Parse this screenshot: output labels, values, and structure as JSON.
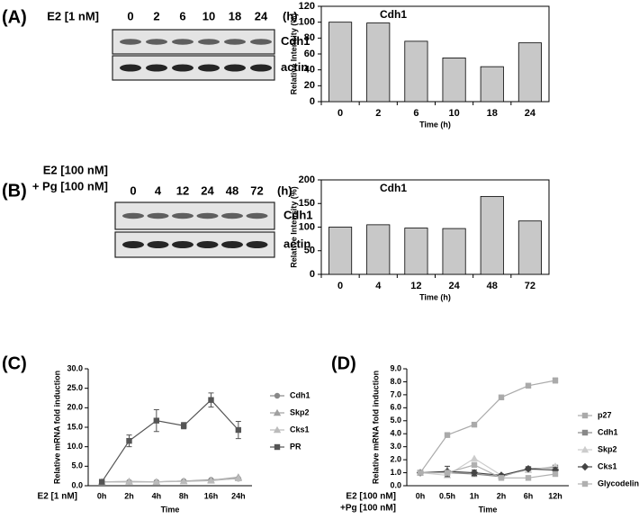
{
  "panels": [
    {
      "label": "(A)",
      "treatment": [
        "E2 [1 nM]"
      ],
      "lanes": [
        "0",
        "2",
        "6",
        "10",
        "18",
        "24"
      ],
      "unit": "(h)",
      "bands": [
        "Cdh1",
        "actin"
      ]
    },
    {
      "label": "(B)",
      "treatment": [
        "E2 [100 nM]",
        "+ Pg [100 nM]"
      ],
      "lanes": [
        "0",
        "4",
        "12",
        "24",
        "48",
        "72"
      ],
      "unit": "(h)",
      "bands": [
        "Cdh1",
        "actin"
      ]
    },
    {
      "label": "(C)"
    },
    {
      "label": "(D)"
    }
  ],
  "chart_data": [
    {
      "type": "bar",
      "title": "Cdh1",
      "y_label": "Relative Intensity (%)",
      "x_label": "Time (h)",
      "categories": [
        "0",
        "2",
        "6",
        "10",
        "18",
        "24"
      ],
      "values": [
        100,
        99,
        76,
        55,
        44,
        74
      ],
      "color": "#c8c8c8",
      "ylim": [
        0,
        120
      ],
      "yticks": [
        0,
        20,
        40,
        60,
        80,
        100,
        120
      ]
    },
    {
      "type": "bar",
      "title": "Cdh1",
      "y_label": "Relative Intensity (%)",
      "x_label": "Time (h)",
      "categories": [
        "0",
        "4",
        "12",
        "24",
        "48",
        "72"
      ],
      "values": [
        100,
        105,
        98,
        97,
        165,
        113
      ],
      "color": "#c8c8c8",
      "ylim": [
        0,
        200
      ],
      "yticks": [
        0,
        50,
        100,
        150,
        200
      ]
    },
    {
      "type": "line",
      "y_label": "Relative mRNA fold induction",
      "x_label": "Time",
      "treatment": [
        "E2 [1 nM]"
      ],
      "categories": [
        "0h",
        "2h",
        "4h",
        "8h",
        "16h",
        "24h"
      ],
      "ylim": [
        0,
        30
      ],
      "yticks": [
        {
          "value": 0,
          "label": "0.0"
        },
        {
          "value": 5,
          "label": "5.0"
        },
        {
          "value": 10,
          "label": "10.0"
        },
        {
          "value": 15,
          "label": "15.0"
        },
        {
          "value": 20,
          "label": "20.0"
        },
        {
          "value": 25,
          "label": "25.0"
        },
        {
          "value": 30,
          "label": "30.0"
        }
      ],
      "series": [
        {
          "name": "Cdh1",
          "color": "#888888",
          "marker": "circle",
          "values": [
            1,
            1,
            1,
            1.2,
            1.5,
            1.8
          ]
        },
        {
          "name": "Skp2",
          "color": "#a0a0a0",
          "marker": "triangle",
          "values": [
            1,
            1.1,
            1,
            1.2,
            1.4,
            2.2
          ]
        },
        {
          "name": "Cks1",
          "color": "#bbbbbb",
          "marker": "triangle",
          "values": [
            1,
            1,
            1,
            1.1,
            1.3,
            1.9
          ]
        },
        {
          "name": "PR",
          "color": "#555555",
          "marker": "square",
          "values": [
            1,
            11.5,
            16.7,
            15.4,
            22,
            14.3
          ],
          "errors": [
            0.3,
            1.5,
            2.8,
            0.8,
            1.8,
            2.2
          ]
        }
      ]
    },
    {
      "type": "line",
      "y_label": "Relative mRNA fold induction",
      "x_label": "Time",
      "treatment": [
        "E2 [100 nM]",
        "+Pg [100 nM]"
      ],
      "categories": [
        "0h",
        "0.5h",
        "1h",
        "2h",
        "6h",
        "12h"
      ],
      "ylim": [
        0,
        9
      ],
      "yticks": [
        {
          "value": 0,
          "label": "0.0"
        },
        {
          "value": 1,
          "label": "1.0"
        },
        {
          "value": 2,
          "label": "2.0"
        },
        {
          "value": 3,
          "label": "3.0"
        },
        {
          "value": 4,
          "label": "4.0"
        },
        {
          "value": 5,
          "label": "5.0"
        },
        {
          "value": 6,
          "label": "6.0"
        },
        {
          "value": 7,
          "label": "7.0"
        },
        {
          "value": 8,
          "label": "8.0"
        },
        {
          "value": 9,
          "label": "9.0"
        }
      ],
      "series": [
        {
          "name": "p27",
          "color": "#aaaaaa",
          "marker": "square",
          "values": [
            1,
            3.9,
            4.7,
            6.8,
            7.7,
            8.1
          ],
          "errors": [
            0.1,
            0.05,
            0.15,
            0.1,
            0.05,
            0.2
          ]
        },
        {
          "name": "Cdh1",
          "color": "#888888",
          "marker": "square",
          "values": [
            1,
            1,
            0.9,
            0.7,
            1.3,
            1.4
          ]
        },
        {
          "name": "Skp2",
          "color": "#cccccc",
          "marker": "triangle",
          "values": [
            1,
            0.8,
            2.1,
            0.8,
            1.2,
            1.5
          ]
        },
        {
          "name": "Cks1",
          "color": "#444444",
          "marker": "diamond",
          "values": [
            1,
            1.1,
            1,
            0.8,
            1.3,
            1.2
          ],
          "errors": [
            0.15,
            0.4,
            0.2,
            0.1,
            0.1,
            0.2
          ]
        },
        {
          "name": "Glycodelin",
          "color": "#b0b0b0",
          "marker": "square",
          "values": [
            1,
            1,
            1.6,
            0.6,
            0.6,
            0.9
          ]
        }
      ]
    }
  ]
}
